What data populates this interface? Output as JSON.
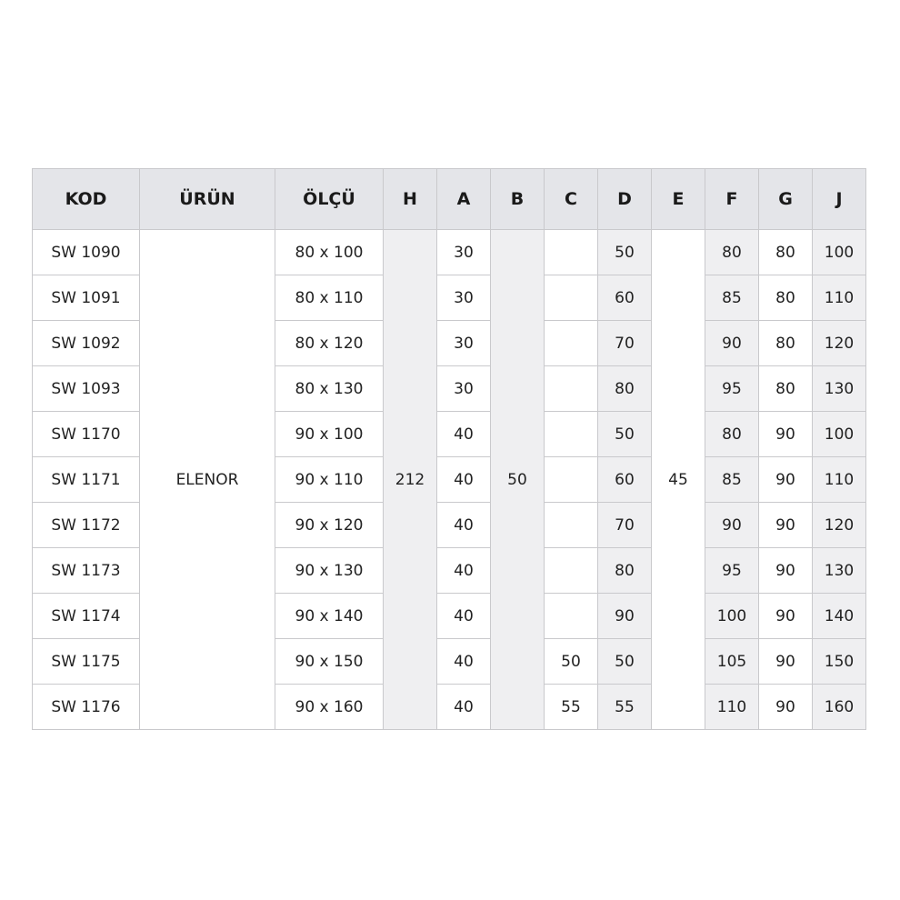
{
  "headers": [
    "KOD",
    "ÜRÜN",
    "ÖLÇÜ",
    "H",
    "A",
    "B",
    "C",
    "D",
    "E",
    "F",
    "G",
    "J"
  ],
  "product": "ELENOR",
  "H": "212",
  "B": "50",
  "E": "45",
  "rows": [
    {
      "kod": "SW 1090",
      "olcu": "80 x 100",
      "A": "30",
      "C": "",
      "D": "50",
      "F": "80",
      "G": "80",
      "J": "100"
    },
    {
      "kod": "SW 1091",
      "olcu": "80 x 110",
      "A": "30",
      "C": "",
      "D": "60",
      "F": "85",
      "G": "80",
      "J": "110"
    },
    {
      "kod": "SW 1092",
      "olcu": "80 x 120",
      "A": "30",
      "C": "",
      "D": "70",
      "F": "90",
      "G": "80",
      "J": "120"
    },
    {
      "kod": "SW 1093",
      "olcu": "80 x 130",
      "A": "30",
      "C": "",
      "D": "80",
      "F": "95",
      "G": "80",
      "J": "130"
    },
    {
      "kod": "SW 1170",
      "olcu": "90 x 100",
      "A": "40",
      "C": "",
      "D": "50",
      "F": "80",
      "G": "90",
      "J": "100"
    },
    {
      "kod": "SW 1171",
      "olcu": "90 x 110",
      "A": "40",
      "C": "",
      "D": "60",
      "F": "85",
      "G": "90",
      "J": "110"
    },
    {
      "kod": "SW 1172",
      "olcu": "90 x 120",
      "A": "40",
      "C": "",
      "D": "70",
      "F": "90",
      "G": "90",
      "J": "120"
    },
    {
      "kod": "SW 1173",
      "olcu": "90 x 130",
      "A": "40",
      "C": "",
      "D": "80",
      "F": "95",
      "G": "90",
      "J": "130"
    },
    {
      "kod": "SW 1174",
      "olcu": "90 x 140",
      "A": "40",
      "C": "",
      "D": "90",
      "F": "100",
      "G": "90",
      "J": "140"
    },
    {
      "kod": "SW 1175",
      "olcu": "90 x 150",
      "A": "40",
      "C": "50",
      "D": "50",
      "F": "105",
      "G": "90",
      "J": "150"
    },
    {
      "kod": "SW 1176",
      "olcu": "90 x 160",
      "A": "40",
      "C": "55",
      "D": "55",
      "F": "110",
      "G": "90",
      "J": "160"
    }
  ]
}
